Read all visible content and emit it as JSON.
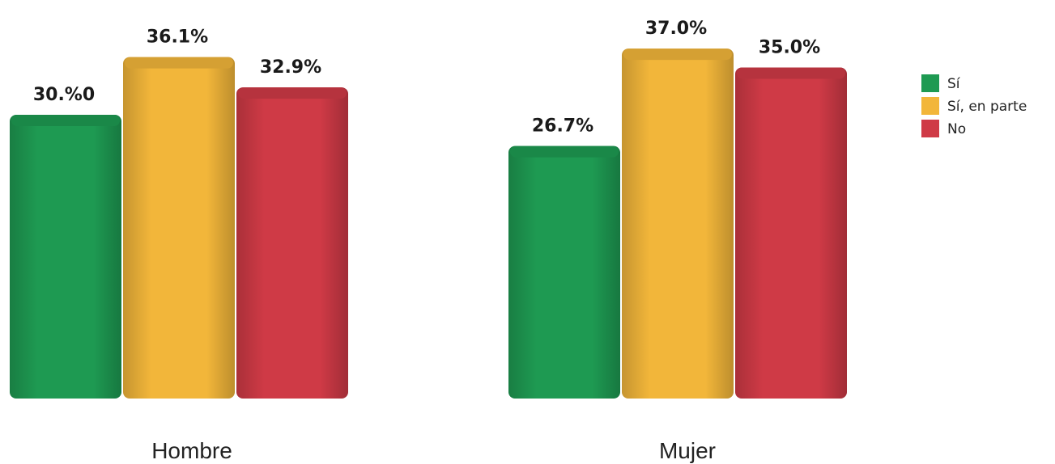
{
  "chart_data": {
    "type": "bar",
    "title": "",
    "xlabel": "",
    "ylabel": "",
    "ylim": [
      0,
      40
    ],
    "grid": false,
    "legend_position": "right",
    "categories": [
      "Hombre",
      "Mujer"
    ],
    "series": [
      {
        "name": "Sí",
        "color": "#1e9a52",
        "values": [
          30.0,
          26.7
        ],
        "labels": [
          "30.%0",
          "26.7%"
        ]
      },
      {
        "name": "Sí, en parte",
        "color": "#f2b63a",
        "values": [
          36.1,
          37.0
        ],
        "labels": [
          "36.1%",
          "37.0%"
        ]
      },
      {
        "name": "No",
        "color": "#cf3a46",
        "values": [
          32.9,
          35.0
        ],
        "labels": [
          "32.9%",
          "35.0%"
        ]
      }
    ]
  }
}
